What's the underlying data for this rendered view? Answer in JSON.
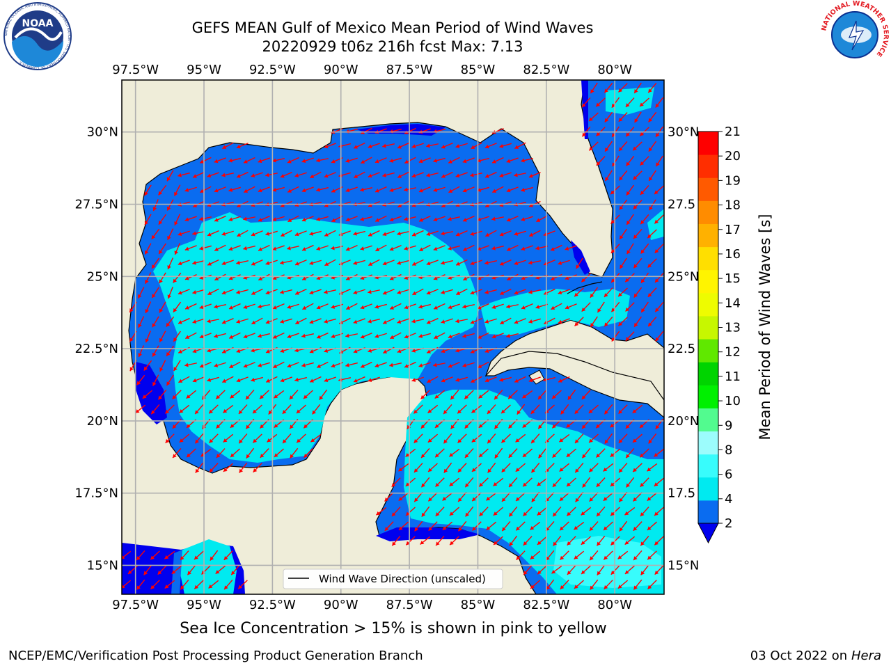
{
  "title_line1": "GEFS MEAN Gulf of Mexico Mean Period of Wind Waves",
  "title_line2": "20220929 t06z 216h fcst   Max: 7.13",
  "logos": {
    "noaa_text": "NOAA",
    "noaa_ring_text": "NATIONAL OCEANIC AND ATMOSPHERIC ADMINISTRATION · U.S. DEPARTMENT OF COMMERCE",
    "nws_ring_text": "NATIONAL WEATHER SERVICE"
  },
  "map": {
    "lon_range": [
      -98,
      -78.2
    ],
    "lat_range": [
      14,
      31.8
    ],
    "lon_ticks": [
      "97.5°W",
      "95°W",
      "92.5°W",
      "90°W",
      "87.5°W",
      "85°W",
      "82.5°W",
      "80°W"
    ],
    "lat_ticks": [
      "30°N",
      "27.5°N",
      "25°N",
      "22.5°N",
      "20°N",
      "17.5°N",
      "15°N"
    ],
    "right_lat_ticks": [
      "30°N",
      "27.5",
      "25°N",
      "22.5",
      "20°N",
      "17.5",
      "15°N"
    ],
    "grid": true,
    "land_color": "#efedd9",
    "legend_label": "Wind Wave Direction (unscaled)",
    "arrow_color": "#ff0000"
  },
  "colorbar": {
    "label": "Mean Period of Wind Waves [s]",
    "ticks": [
      "2",
      "4",
      "6",
      "8",
      "9",
      "10",
      "11",
      "12",
      "13",
      "14",
      "15",
      "16",
      "17",
      "18",
      "19",
      "20",
      "21"
    ],
    "colors": [
      "#0a6cf0",
      "#00eaf0",
      "#38fcfc",
      "#9cfcfc",
      "#52fb8f",
      "#00f000",
      "#00d400",
      "#60e800",
      "#c7f700",
      "#eefc00",
      "#fff400",
      "#ffdf00",
      "#ffb100",
      "#ff8c00",
      "#ff5a00",
      "#ff2e00",
      "#fe0000"
    ],
    "extend_color": "#0000ee"
  },
  "subcaption": "Sea Ice Concentration > 15% is shown in pink to yellow",
  "footer_left": "NCEP/EMC/Verification Post Processing Product Generation Branch",
  "footer_right_date": "03 Oct 2022 on ",
  "footer_right_host": "Hera"
}
